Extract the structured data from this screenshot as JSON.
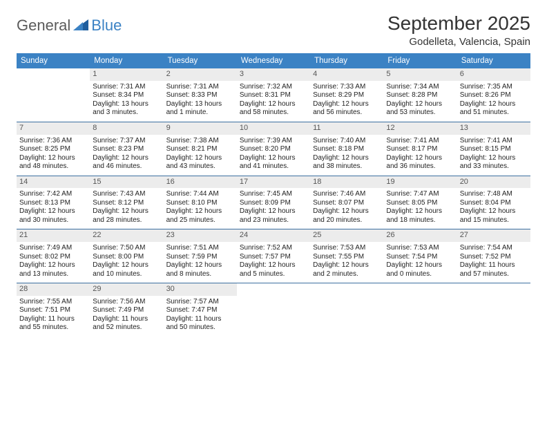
{
  "brand": {
    "part1": "General",
    "part2": "Blue"
  },
  "title": "September 2025",
  "location": "Godelleta, Valencia, Spain",
  "colors": {
    "header_bg": "#3b82c4",
    "header_text": "#ffffff",
    "daynum_bg": "#ececec",
    "daynum_text": "#555555",
    "rule": "#3b6fa0",
    "body_text": "#222222",
    "title_text": "#333333"
  },
  "weekdays": [
    "Sunday",
    "Monday",
    "Tuesday",
    "Wednesday",
    "Thursday",
    "Friday",
    "Saturday"
  ],
  "weeks": [
    [
      {
        "n": "",
        "sunrise": "",
        "sunset": "",
        "daylight": ""
      },
      {
        "n": "1",
        "sunrise": "Sunrise: 7:31 AM",
        "sunset": "Sunset: 8:34 PM",
        "daylight": "Daylight: 13 hours and 3 minutes."
      },
      {
        "n": "2",
        "sunrise": "Sunrise: 7:31 AM",
        "sunset": "Sunset: 8:33 PM",
        "daylight": "Daylight: 13 hours and 1 minute."
      },
      {
        "n": "3",
        "sunrise": "Sunrise: 7:32 AM",
        "sunset": "Sunset: 8:31 PM",
        "daylight": "Daylight: 12 hours and 58 minutes."
      },
      {
        "n": "4",
        "sunrise": "Sunrise: 7:33 AM",
        "sunset": "Sunset: 8:29 PM",
        "daylight": "Daylight: 12 hours and 56 minutes."
      },
      {
        "n": "5",
        "sunrise": "Sunrise: 7:34 AM",
        "sunset": "Sunset: 8:28 PM",
        "daylight": "Daylight: 12 hours and 53 minutes."
      },
      {
        "n": "6",
        "sunrise": "Sunrise: 7:35 AM",
        "sunset": "Sunset: 8:26 PM",
        "daylight": "Daylight: 12 hours and 51 minutes."
      }
    ],
    [
      {
        "n": "7",
        "sunrise": "Sunrise: 7:36 AM",
        "sunset": "Sunset: 8:25 PM",
        "daylight": "Daylight: 12 hours and 48 minutes."
      },
      {
        "n": "8",
        "sunrise": "Sunrise: 7:37 AM",
        "sunset": "Sunset: 8:23 PM",
        "daylight": "Daylight: 12 hours and 46 minutes."
      },
      {
        "n": "9",
        "sunrise": "Sunrise: 7:38 AM",
        "sunset": "Sunset: 8:21 PM",
        "daylight": "Daylight: 12 hours and 43 minutes."
      },
      {
        "n": "10",
        "sunrise": "Sunrise: 7:39 AM",
        "sunset": "Sunset: 8:20 PM",
        "daylight": "Daylight: 12 hours and 41 minutes."
      },
      {
        "n": "11",
        "sunrise": "Sunrise: 7:40 AM",
        "sunset": "Sunset: 8:18 PM",
        "daylight": "Daylight: 12 hours and 38 minutes."
      },
      {
        "n": "12",
        "sunrise": "Sunrise: 7:41 AM",
        "sunset": "Sunset: 8:17 PM",
        "daylight": "Daylight: 12 hours and 36 minutes."
      },
      {
        "n": "13",
        "sunrise": "Sunrise: 7:41 AM",
        "sunset": "Sunset: 8:15 PM",
        "daylight": "Daylight: 12 hours and 33 minutes."
      }
    ],
    [
      {
        "n": "14",
        "sunrise": "Sunrise: 7:42 AM",
        "sunset": "Sunset: 8:13 PM",
        "daylight": "Daylight: 12 hours and 30 minutes."
      },
      {
        "n": "15",
        "sunrise": "Sunrise: 7:43 AM",
        "sunset": "Sunset: 8:12 PM",
        "daylight": "Daylight: 12 hours and 28 minutes."
      },
      {
        "n": "16",
        "sunrise": "Sunrise: 7:44 AM",
        "sunset": "Sunset: 8:10 PM",
        "daylight": "Daylight: 12 hours and 25 minutes."
      },
      {
        "n": "17",
        "sunrise": "Sunrise: 7:45 AM",
        "sunset": "Sunset: 8:09 PM",
        "daylight": "Daylight: 12 hours and 23 minutes."
      },
      {
        "n": "18",
        "sunrise": "Sunrise: 7:46 AM",
        "sunset": "Sunset: 8:07 PM",
        "daylight": "Daylight: 12 hours and 20 minutes."
      },
      {
        "n": "19",
        "sunrise": "Sunrise: 7:47 AM",
        "sunset": "Sunset: 8:05 PM",
        "daylight": "Daylight: 12 hours and 18 minutes."
      },
      {
        "n": "20",
        "sunrise": "Sunrise: 7:48 AM",
        "sunset": "Sunset: 8:04 PM",
        "daylight": "Daylight: 12 hours and 15 minutes."
      }
    ],
    [
      {
        "n": "21",
        "sunrise": "Sunrise: 7:49 AM",
        "sunset": "Sunset: 8:02 PM",
        "daylight": "Daylight: 12 hours and 13 minutes."
      },
      {
        "n": "22",
        "sunrise": "Sunrise: 7:50 AM",
        "sunset": "Sunset: 8:00 PM",
        "daylight": "Daylight: 12 hours and 10 minutes."
      },
      {
        "n": "23",
        "sunrise": "Sunrise: 7:51 AM",
        "sunset": "Sunset: 7:59 PM",
        "daylight": "Daylight: 12 hours and 8 minutes."
      },
      {
        "n": "24",
        "sunrise": "Sunrise: 7:52 AM",
        "sunset": "Sunset: 7:57 PM",
        "daylight": "Daylight: 12 hours and 5 minutes."
      },
      {
        "n": "25",
        "sunrise": "Sunrise: 7:53 AM",
        "sunset": "Sunset: 7:55 PM",
        "daylight": "Daylight: 12 hours and 2 minutes."
      },
      {
        "n": "26",
        "sunrise": "Sunrise: 7:53 AM",
        "sunset": "Sunset: 7:54 PM",
        "daylight": "Daylight: 12 hours and 0 minutes."
      },
      {
        "n": "27",
        "sunrise": "Sunrise: 7:54 AM",
        "sunset": "Sunset: 7:52 PM",
        "daylight": "Daylight: 11 hours and 57 minutes."
      }
    ],
    [
      {
        "n": "28",
        "sunrise": "Sunrise: 7:55 AM",
        "sunset": "Sunset: 7:51 PM",
        "daylight": "Daylight: 11 hours and 55 minutes."
      },
      {
        "n": "29",
        "sunrise": "Sunrise: 7:56 AM",
        "sunset": "Sunset: 7:49 PM",
        "daylight": "Daylight: 11 hours and 52 minutes."
      },
      {
        "n": "30",
        "sunrise": "Sunrise: 7:57 AM",
        "sunset": "Sunset: 7:47 PM",
        "daylight": "Daylight: 11 hours and 50 minutes."
      },
      {
        "n": "",
        "sunrise": "",
        "sunset": "",
        "daylight": ""
      },
      {
        "n": "",
        "sunrise": "",
        "sunset": "",
        "daylight": ""
      },
      {
        "n": "",
        "sunrise": "",
        "sunset": "",
        "daylight": ""
      },
      {
        "n": "",
        "sunrise": "",
        "sunset": "",
        "daylight": ""
      }
    ]
  ]
}
